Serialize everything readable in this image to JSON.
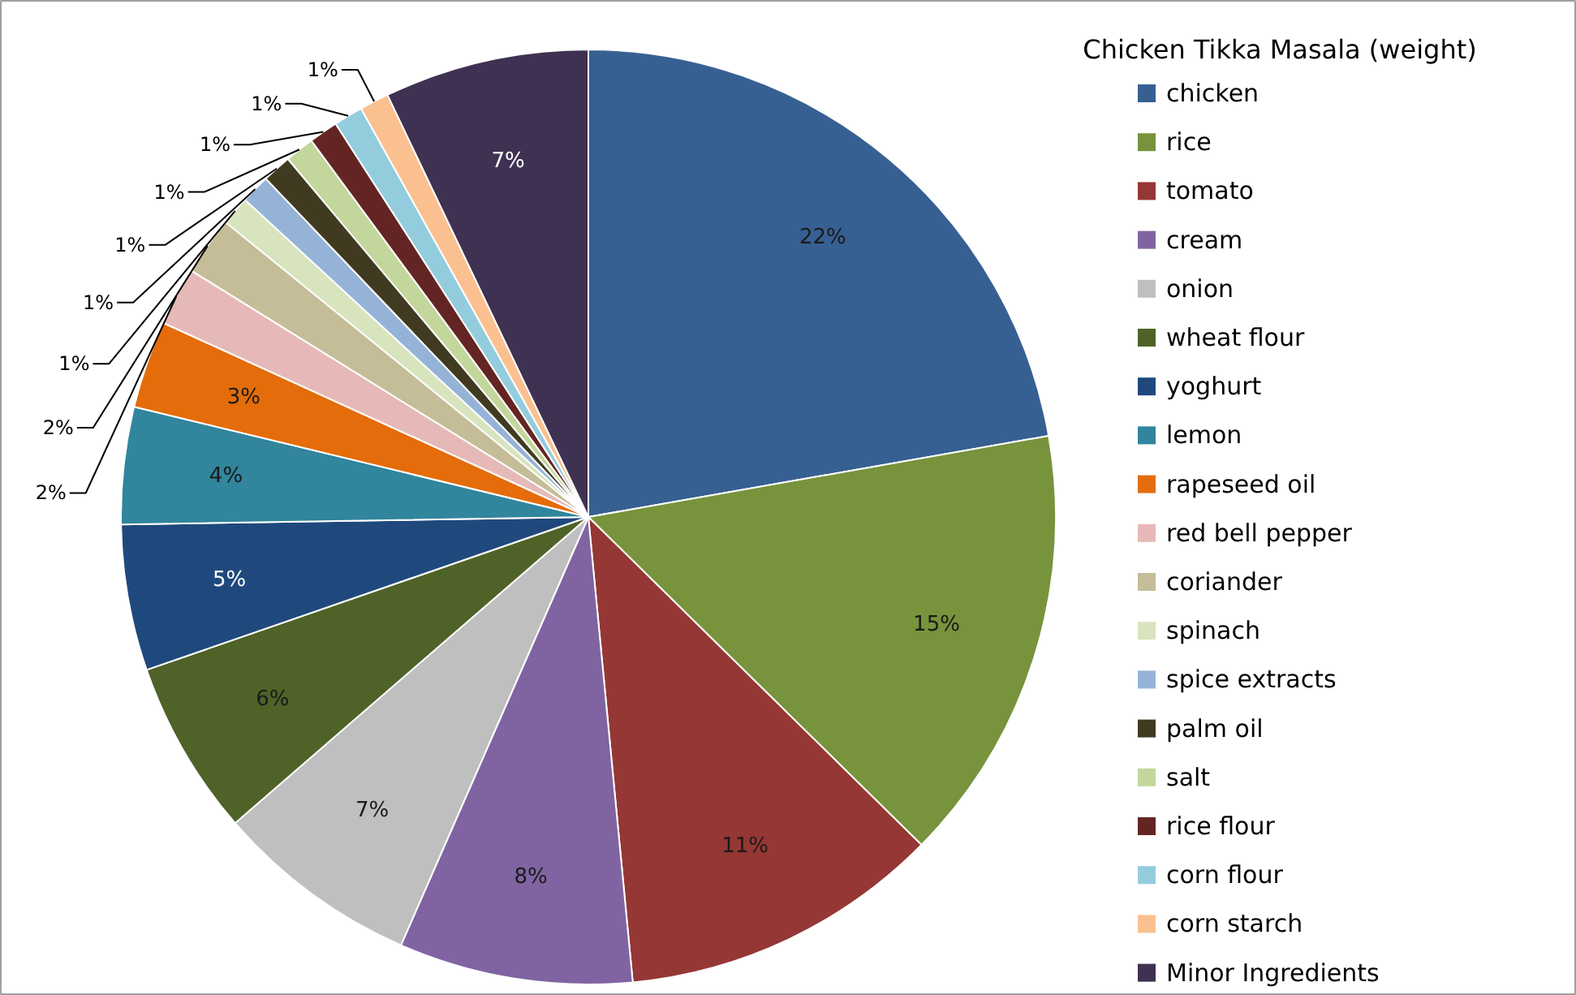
{
  "chart_data": {
    "type": "pie",
    "title": "Chicken Tikka Masala (weight)",
    "categories": [
      "chicken",
      "rice",
      "tomato",
      "cream",
      "onion",
      "wheat flour",
      "yoghurt",
      "lemon",
      "rapeseed oil",
      "red bell pepper",
      "coriander",
      "spinach",
      "spice extracts",
      "palm oil",
      "salt",
      "rice flour",
      "corn flour",
      "corn starch",
      "Minor Ingredients"
    ],
    "values": [
      22,
      15,
      11,
      8,
      7,
      6,
      5,
      4,
      3,
      2,
      2,
      1,
      1,
      1,
      1,
      1,
      1,
      1,
      7
    ],
    "value_labels": [
      "22%",
      "15%",
      "11%",
      "8%",
      "7%",
      "6%",
      "5%",
      "4%",
      "3%",
      "2%",
      "2%",
      "1%",
      "1%",
      "1%",
      "1%",
      "1%",
      "1%",
      "1%",
      "7%"
    ],
    "colors": [
      "#376092",
      "#77933c",
      "#953735",
      "#8064a2",
      "#bfbfbf",
      "#4f6228",
      "#1f497d",
      "#31859c",
      "#e46c0a",
      "#e6b9b8",
      "#c4bd97",
      "#d7e4bd",
      "#95b3d7",
      "#403b20",
      "#c3d69b",
      "#632523",
      "#93cddd",
      "#fac090",
      "#3f3151"
    ],
    "legend": "right"
  }
}
